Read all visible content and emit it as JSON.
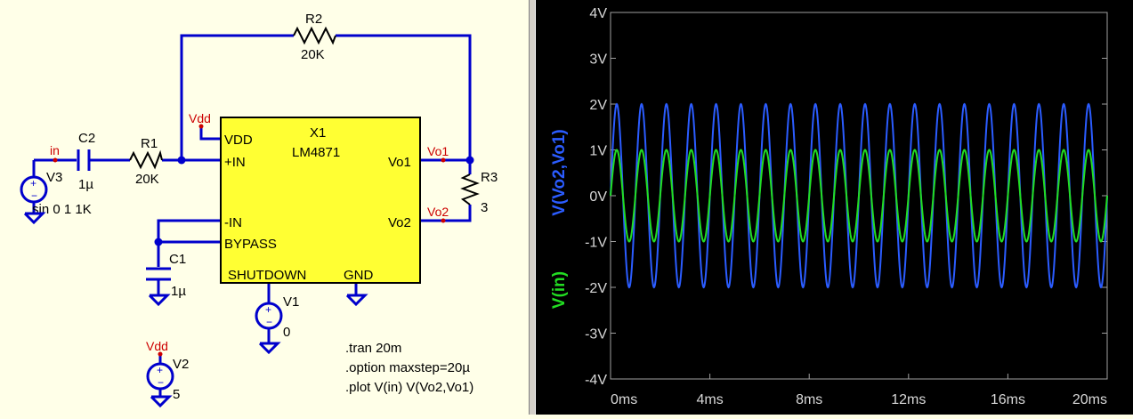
{
  "schematic": {
    "components": {
      "r2": {
        "name": "R2",
        "value": "20K"
      },
      "r1": {
        "name": "R1",
        "value": "20K"
      },
      "r3": {
        "name": "R3",
        "value": "3"
      },
      "c2": {
        "name": "C2",
        "value": "1µ"
      },
      "c1": {
        "name": "C1",
        "value": "1µ"
      },
      "v3": {
        "name": "V3",
        "value": "sin 0 1 1K"
      },
      "v1": {
        "name": "V1",
        "value": "0"
      },
      "v2": {
        "name": "V2",
        "value": "5"
      }
    },
    "ic": {
      "name": "X1",
      "part": "LM4871",
      "pins": {
        "vdd": "VDD",
        "in_plus": "+IN",
        "in_minus": "-IN",
        "bypass": "BYPASS",
        "shutdown": "SHUTDOWN",
        "gnd": "GND",
        "vo1": "Vo1",
        "vo2": "Vo2"
      }
    },
    "nets": {
      "in": "in",
      "vdd_ic": "Vdd",
      "vdd_src": "Vdd",
      "vo1": "Vo1",
      "vo2": "Vo2"
    },
    "directives": [
      ".tran 20m",
      ".option maxstep=20µ",
      ".plot V(in) V(Vo2,Vo1)"
    ],
    "colors": {
      "wire": "#0000cc",
      "ic_fill": "#ffff33",
      "net_label": "#cc0000"
    }
  },
  "chart_data": {
    "type": "line",
    "xlim": [
      0,
      20
    ],
    "ylim": [
      -4,
      4
    ],
    "x_ticks": [
      "0ms",
      "4ms",
      "8ms",
      "12ms",
      "16ms",
      "20ms"
    ],
    "y_ticks": [
      "4V",
      "3V",
      "2V",
      "1V",
      "0V",
      "-1V",
      "-2V",
      "-3V",
      "-4V"
    ],
    "grid": false,
    "series": [
      {
        "name": "V(Vo2,Vo1)",
        "color": "#2b5cff",
        "amplitude": 2,
        "frequency_per_ms": 1,
        "phase": "sine"
      },
      {
        "name": "V(in)",
        "color": "#22dd22",
        "amplitude": 1,
        "frequency_per_ms": 1,
        "phase": "sine"
      }
    ]
  }
}
